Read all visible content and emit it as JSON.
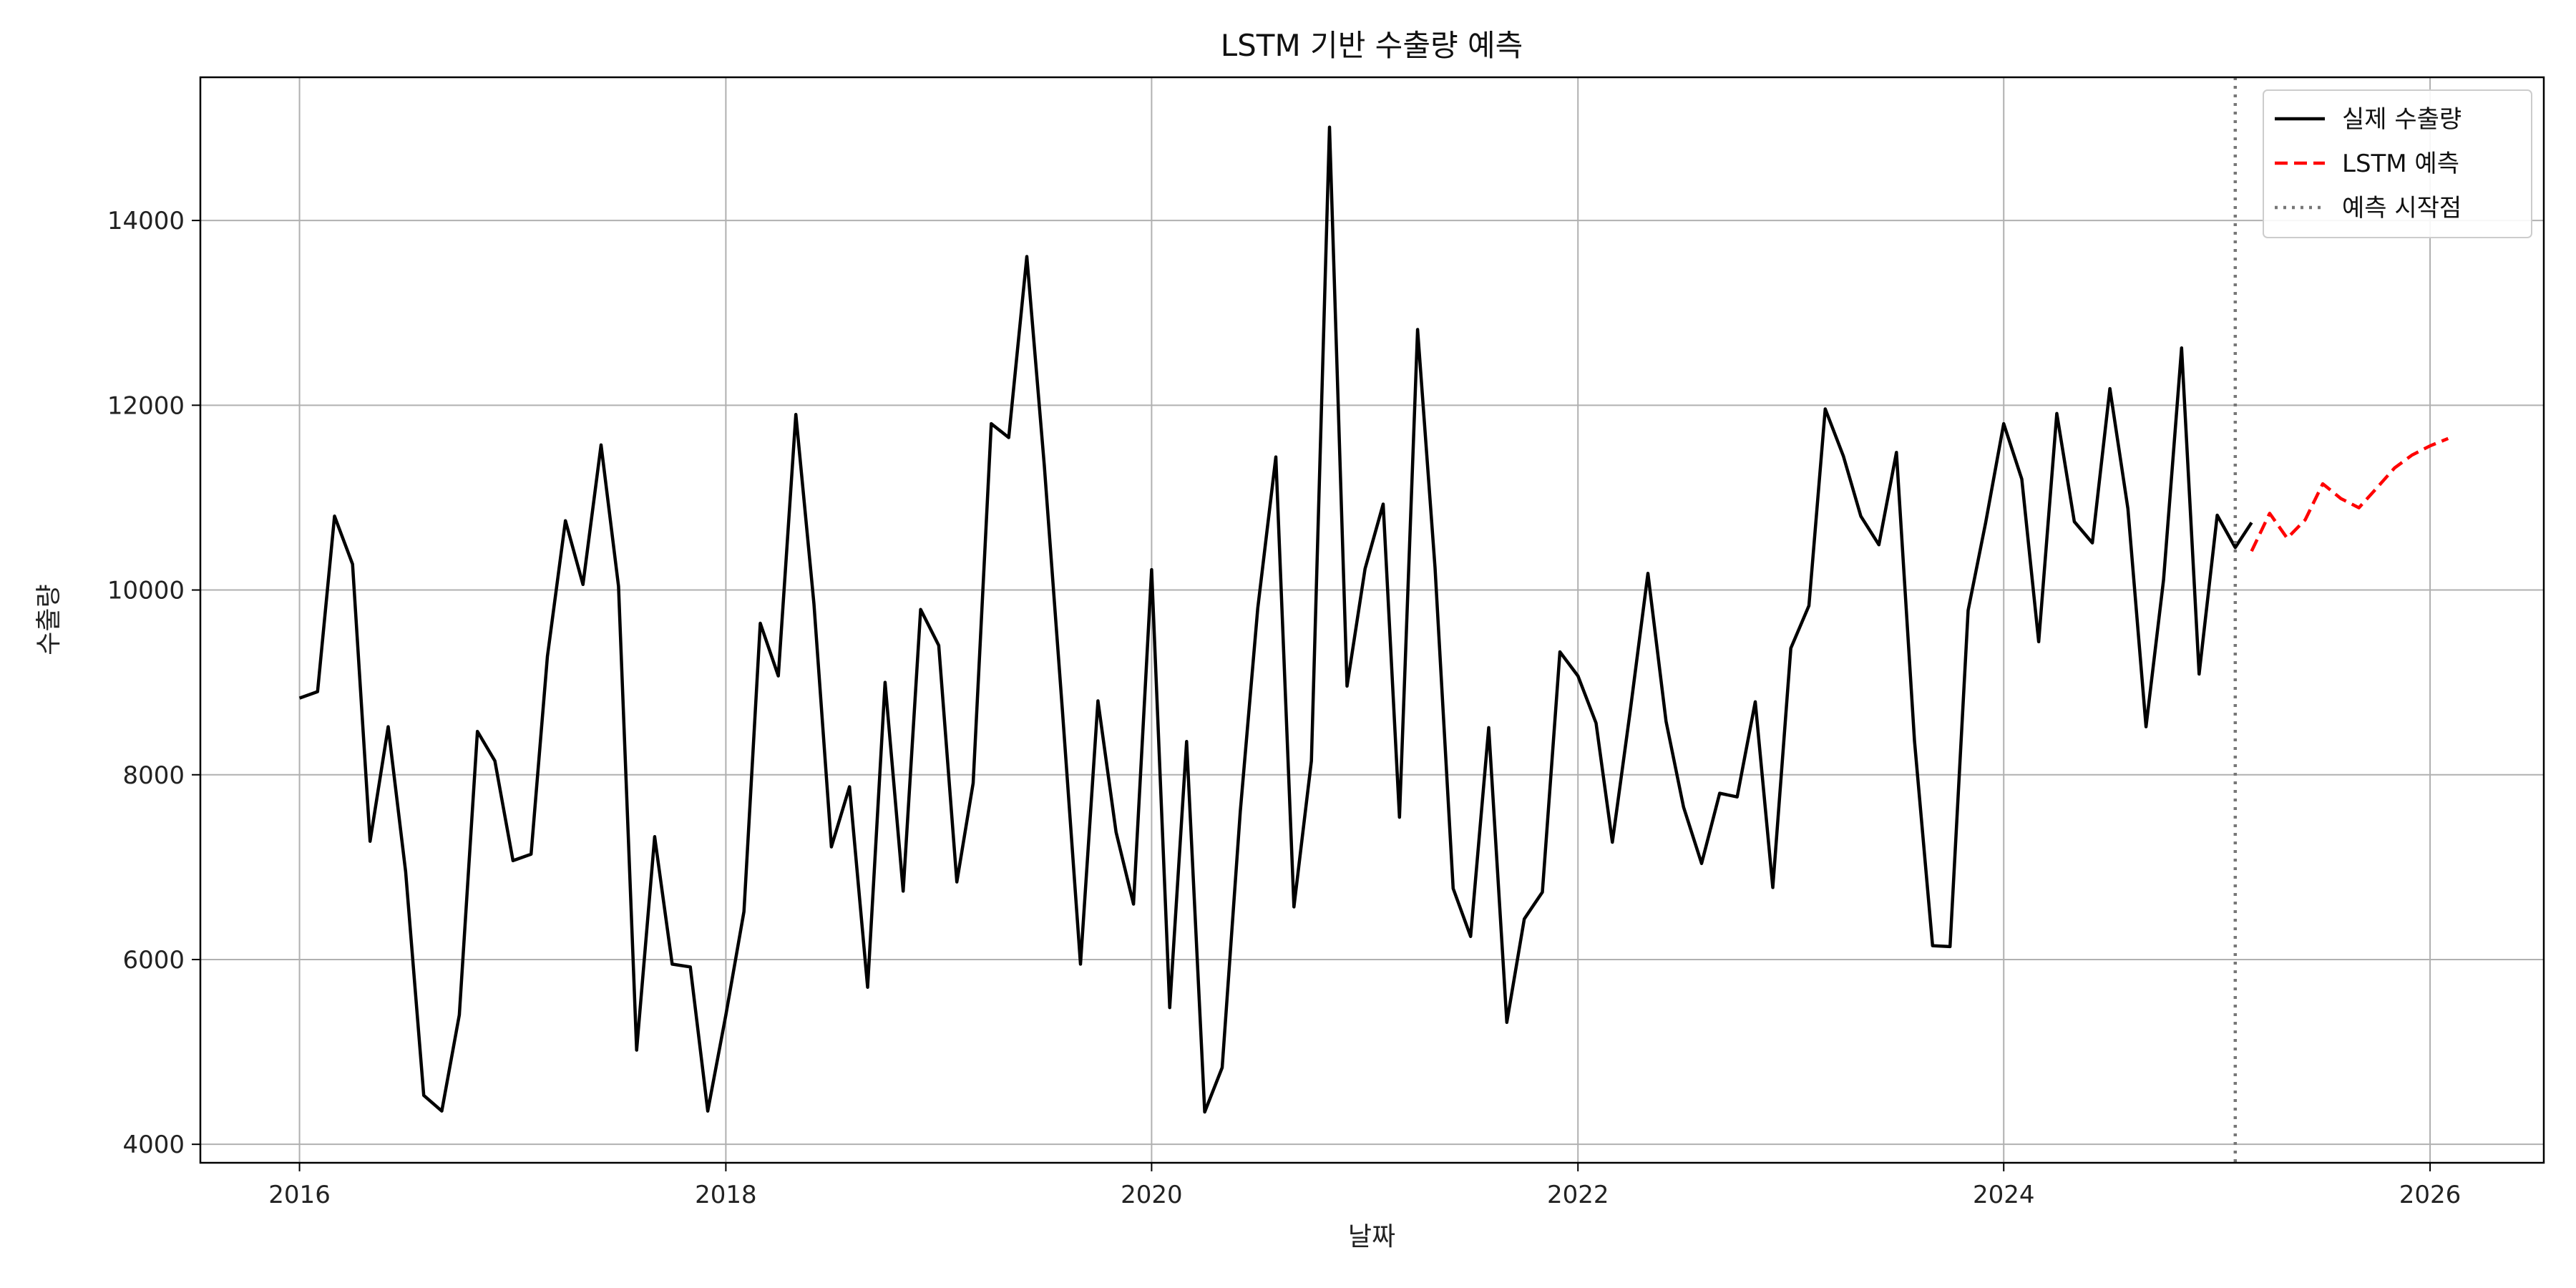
{
  "chart_data": {
    "type": "line",
    "title": "LSTM 기반 수출량 예측",
    "xlabel": "날짜",
    "ylabel": "수출량",
    "xlim": [
      "2015-07-15",
      "2026-07-15"
    ],
    "ylim": [
      3800,
      15550
    ],
    "x_ticks": [
      "2016",
      "2018",
      "2020",
      "2022",
      "2024",
      "2026"
    ],
    "y_ticks": [
      4000,
      6000,
      8000,
      10000,
      12000,
      14000
    ],
    "grid": true,
    "legend_position": "top-right",
    "series": [
      {
        "name": "실제 수출량",
        "color": "#000000",
        "dash": "solid",
        "start": "2016-01",
        "values": [
          8830,
          8900,
          10800,
          10280,
          7280,
          8520,
          6950,
          4530,
          4360,
          5400,
          8470,
          8150,
          7070,
          7140,
          9280,
          10750,
          10060,
          11570,
          10040,
          5020,
          7330,
          5950,
          5920,
          4360,
          5400,
          6520,
          9640,
          9070,
          11900,
          9850,
          7220,
          7870,
          5700,
          9000,
          6740,
          9790,
          9400,
          6840,
          7910,
          11800,
          11650,
          13610,
          11350,
          8700,
          5950,
          8800,
          7380,
          6600,
          10220,
          5480,
          8360,
          4350,
          4830,
          7600,
          9800,
          11440,
          6570,
          8150,
          15010,
          8960,
          10230,
          10930,
          7540,
          12820,
          10240,
          6770,
          6250,
          8510,
          5320,
          6440,
          6730,
          9330,
          9070,
          8560,
          7270,
          8710,
          10180,
          8580,
          7650,
          7040,
          7800,
          7760,
          8790,
          6780,
          9370,
          9830,
          11960,
          11450,
          10800,
          10490,
          11490,
          8370,
          6150,
          6140,
          9780,
          10730,
          11800,
          11200,
          9440,
          11910,
          10740,
          10510,
          12180,
          10880,
          8520,
          10110,
          12620,
          9090,
          10810,
          10460,
          10730
        ]
      },
      {
        "name": "LSTM 예측",
        "color": "#ff0000",
        "dash": "dashed",
        "start": "2025-03",
        "values": [
          10420,
          10830,
          10560,
          10760,
          11150,
          10990,
          10890,
          11100,
          11320,
          11460,
          11560,
          11640
        ]
      }
    ],
    "vlines": [
      {
        "name": "예측 시작점",
        "x": "2025-02",
        "color": "#777777",
        "dash": "dotted"
      }
    ]
  }
}
